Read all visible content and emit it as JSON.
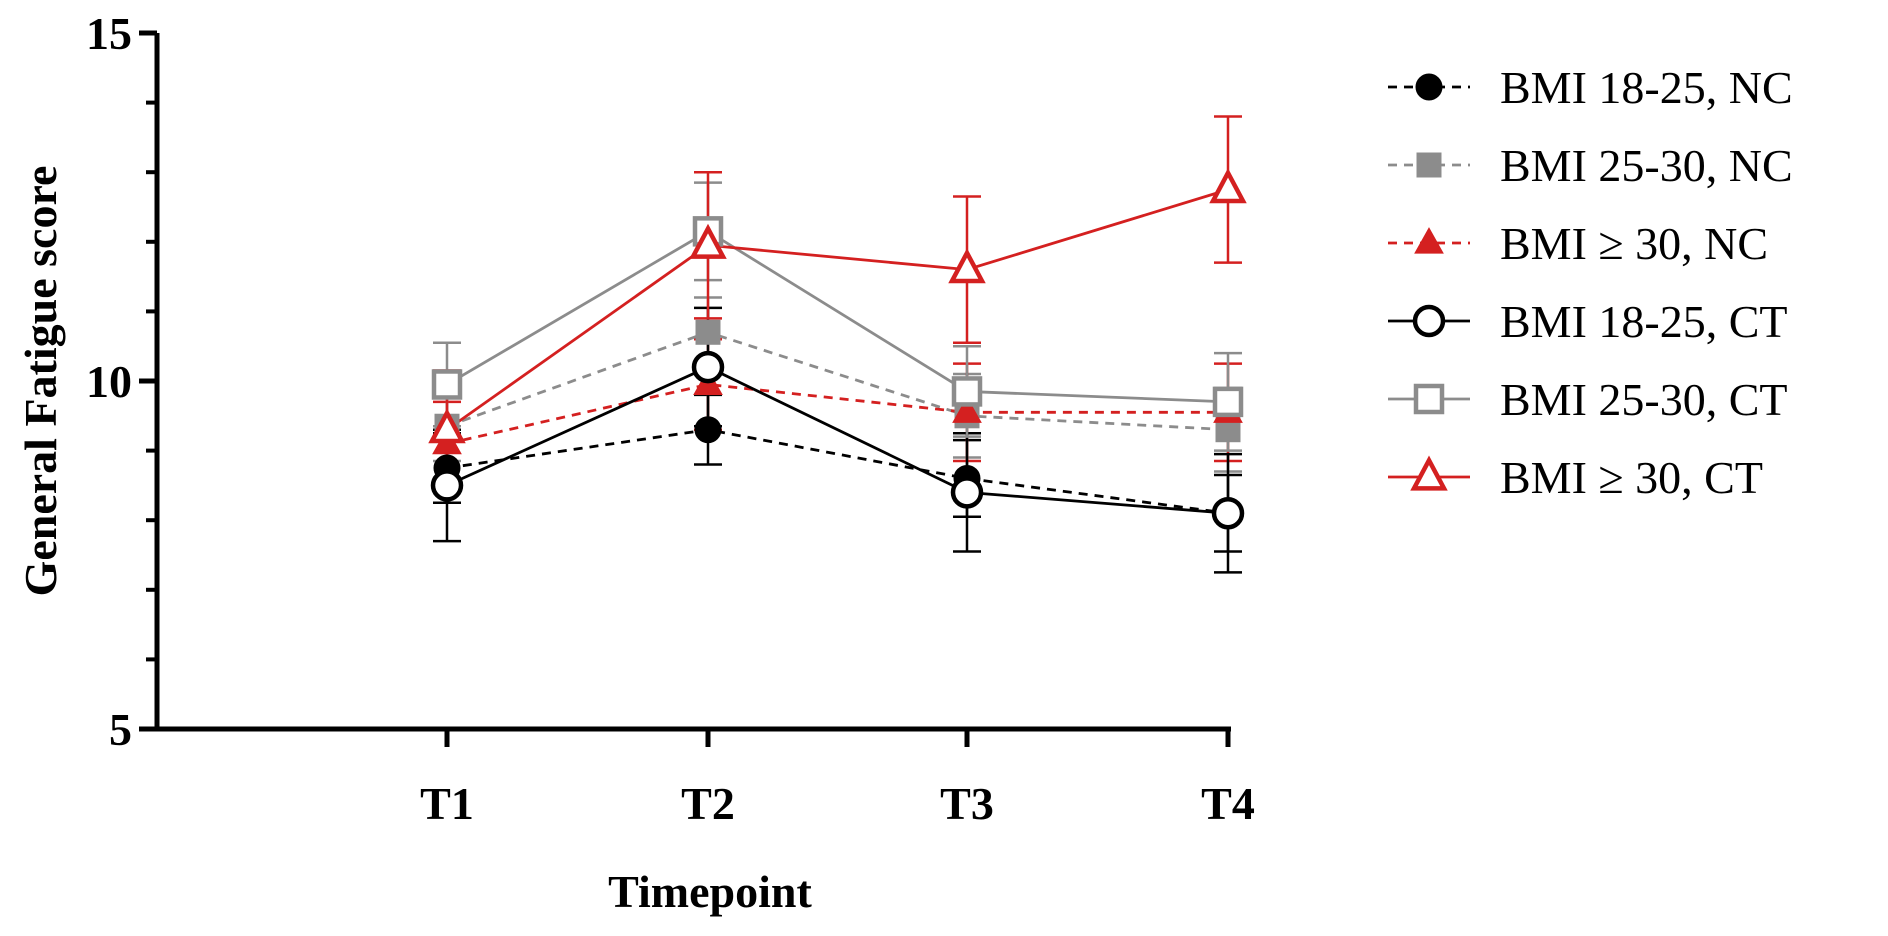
{
  "chart_data": {
    "type": "line",
    "title": "",
    "xlabel": "Timepoint",
    "ylabel": "General Fatigue score",
    "categories": [
      "T1",
      "T2",
      "T3",
      "T4"
    ],
    "ylim": [
      5,
      15
    ],
    "yticks": [
      "5",
      "10",
      "15"
    ],
    "grid": false,
    "legend_position": "right",
    "series": [
      {
        "name": "BMI 18-25, NC",
        "values": [
          8.75,
          9.3,
          8.6,
          8.1
        ],
        "err": [
          0.5,
          0.5,
          0.55,
          0.55
        ],
        "color": "#000000",
        "dash": true,
        "marker": "circle",
        "filled": true
      },
      {
        "name": "BMI 25-30, NC",
        "values": [
          9.35,
          10.7,
          9.5,
          9.3
        ],
        "err": [
          0.5,
          0.5,
          0.6,
          0.6
        ],
        "color": "#8c8c8c",
        "dash": true,
        "marker": "square",
        "filled": true
      },
      {
        "name": "BMI ≥ 30, NC",
        "values": [
          9.1,
          9.95,
          9.55,
          9.55
        ],
        "err": [
          0.6,
          0.65,
          0.7,
          0.7
        ],
        "color": "#d42020",
        "dash": true,
        "marker": "triangle",
        "filled": true
      },
      {
        "name": "BMI 18-25, CT",
        "values": [
          8.5,
          10.2,
          8.4,
          8.1
        ],
        "err": [
          0.8,
          0.85,
          0.85,
          0.85
        ],
        "color": "#000000",
        "dash": false,
        "marker": "circle",
        "filled": false
      },
      {
        "name": "BMI 25-30, CT",
        "values": [
          9.95,
          12.15,
          9.85,
          9.7
        ],
        "err": [
          0.6,
          0.7,
          0.65,
          0.7
        ],
        "color": "#8c8c8c",
        "dash": false,
        "marker": "square",
        "filled": false
      },
      {
        "name": "BMI ≥ 30, CT",
        "values": [
          9.3,
          11.95,
          11.6,
          12.75
        ],
        "err": [
          0.85,
          1.05,
          1.05,
          1.05
        ],
        "color": "#d42020",
        "dash": false,
        "marker": "triangle",
        "filled": false
      }
    ]
  }
}
